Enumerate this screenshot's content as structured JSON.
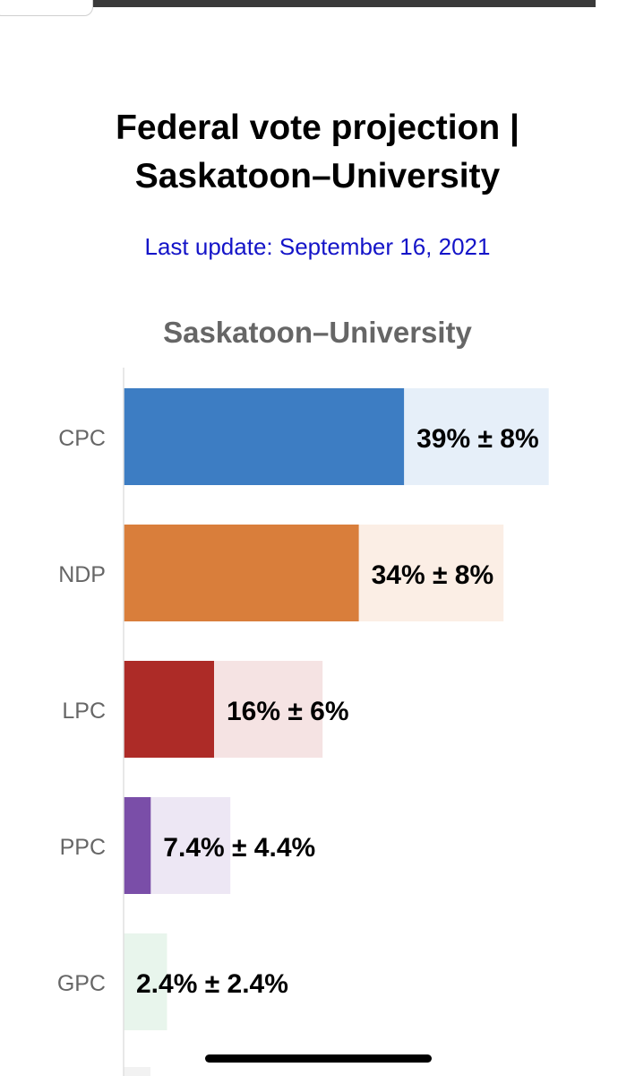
{
  "header": {
    "title_line1": "Federal vote projection |",
    "title_line2": "Saskatoon–University",
    "last_update": "Last update: September 16, 2021"
  },
  "chart_data": {
    "type": "bar",
    "orientation": "horizontal",
    "title": "Saskatoon–University",
    "categories": [
      "CPC",
      "NDP",
      "LPC",
      "PPC",
      "GPC"
    ],
    "values": [
      39,
      34,
      16,
      7.4,
      2.4
    ],
    "margins": [
      8,
      8,
      6,
      4.4,
      2.4
    ],
    "labels": [
      "39% ± 8%",
      "34% ± 8%",
      "16% ± 6%",
      "7.4% ± 4.4%",
      "2.4% ± 2.4%"
    ],
    "colors": [
      "#3d7dc3",
      "#d97e3b",
      "#ad2b27",
      "#7a4ea8",
      "#4cb870"
    ],
    "range_colors": [
      "#e6eff9",
      "#fbeee5",
      "#f5e3e3",
      "#ede7f4",
      "#e8f5ec"
    ],
    "xlim": [
      0,
      48
    ],
    "grid": false
  }
}
